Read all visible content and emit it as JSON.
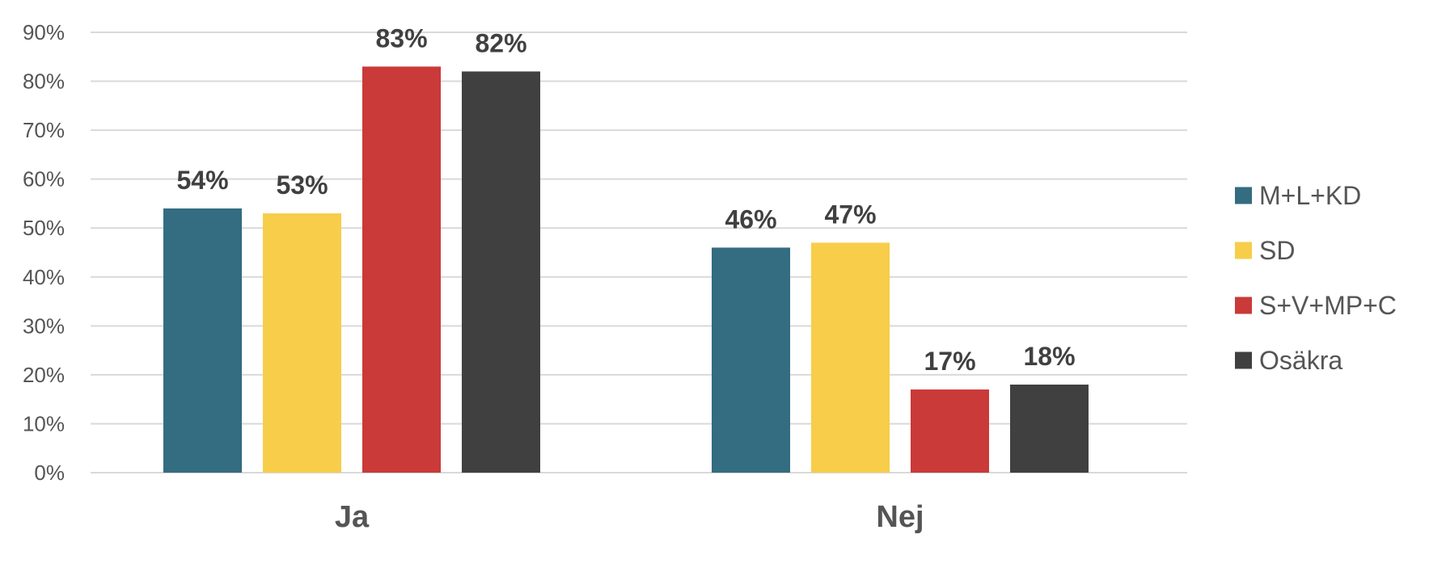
{
  "chart_data": {
    "type": "bar",
    "categories": [
      "Ja",
      "Nej"
    ],
    "series": [
      {
        "name": "M+L+KD",
        "color": "#346c81",
        "values": [
          54,
          46
        ],
        "labels": [
          "54%",
          "46%"
        ]
      },
      {
        "name": "SD",
        "color": "#f7cd4a",
        "values": [
          53,
          47
        ],
        "labels": [
          "53%",
          "47%"
        ]
      },
      {
        "name": "S+V+MP+C",
        "color": "#c93a38",
        "values": [
          83,
          17
        ],
        "labels": [
          "83%",
          "17%"
        ]
      },
      {
        "name": "Osäkra",
        "color": "#404040",
        "values": [
          82,
          18
        ],
        "labels": [
          "82%",
          "18%"
        ]
      }
    ],
    "ylim": [
      0,
      90
    ],
    "yticks": [
      "0%",
      "10%",
      "20%",
      "30%",
      "40%",
      "50%",
      "60%",
      "70%",
      "80%",
      "90%"
    ],
    "title": "",
    "xlabel": "",
    "ylabel": "",
    "grid": true,
    "legend": "right"
  }
}
